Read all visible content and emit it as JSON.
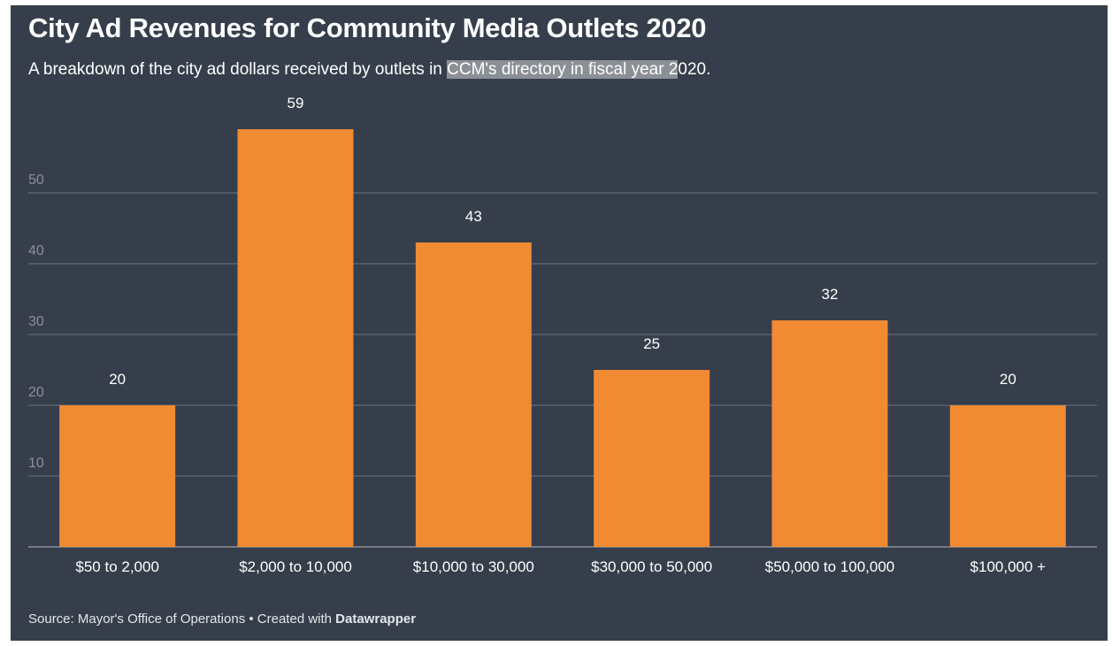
{
  "header": {
    "title": "City Ad Revenues for Community Media Outlets 2020",
    "subtitle_before": "A breakdown of the city ad dollars received by outlets in ",
    "subtitle_highlight": "CCM's directory in fiscal year 2",
    "subtitle_after": "020."
  },
  "footer": {
    "source": "Source: Mayor's Office of Operations",
    "separator": " • ",
    "created_with": "Created with ",
    "tool": "Datawrapper"
  },
  "colors": {
    "background": "#363e4b",
    "bar": "#f08a33",
    "highlight": "#8b8f96"
  },
  "chart_data": {
    "type": "bar",
    "title": "City Ad Revenues for Community Media Outlets 2020",
    "categories": [
      "$50 to 2,000",
      "$2,000 to 10,000",
      "$10,000 to 30,000",
      "$30,000 to 50,000",
      "$50,000 to 100,000",
      "$100,000 +"
    ],
    "values": [
      20,
      59,
      43,
      25,
      32,
      20
    ],
    "ylim": [
      0,
      60
    ],
    "yticks": [
      10,
      20,
      30,
      40,
      50
    ],
    "grid": true,
    "data_labels": true,
    "legend": "none"
  }
}
